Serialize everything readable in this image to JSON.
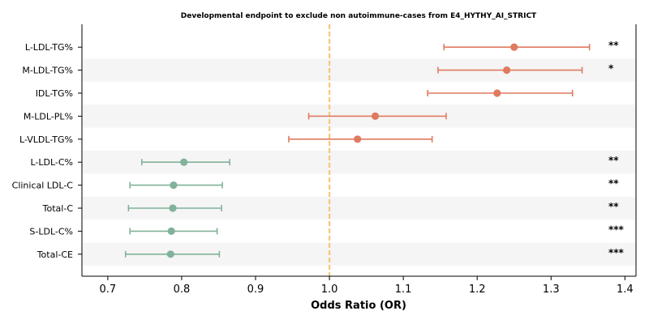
{
  "chart_data": {
    "type": "forest",
    "title": "Developmental endpoint to exclude non autoimmune-cases from E4_HYTHY_AI_STRICT",
    "xlabel": "Odds Ratio (OR)",
    "xlim": [
      0.665,
      1.415
    ],
    "xticks": [
      0.7,
      0.8,
      0.9,
      1.0,
      1.1,
      1.2,
      1.3,
      1.4
    ],
    "xtick_labels": [
      "0.7",
      "0.8",
      "0.9",
      "1.0",
      "1.1",
      "1.2",
      "1.3",
      "1.4"
    ],
    "reference_line": 1.0,
    "reference_color": "#f2c879",
    "colors": {
      "positive": "#e07a5f",
      "negative": "#81b29a",
      "band": "#f5f5f5"
    },
    "rows": [
      {
        "label": "L-LDL-TG%",
        "or": 1.25,
        "lo": 1.155,
        "hi": 1.352,
        "sig": "**",
        "dir": "positive"
      },
      {
        "label": "M-LDL-TG%",
        "or": 1.24,
        "lo": 1.147,
        "hi": 1.342,
        "sig": "*",
        "dir": "positive"
      },
      {
        "label": "IDL-TG%",
        "or": 1.227,
        "lo": 1.133,
        "hi": 1.329,
        "sig": "",
        "dir": "positive"
      },
      {
        "label": "M-LDL-PL%",
        "or": 1.062,
        "lo": 0.972,
        "hi": 1.158,
        "sig": "",
        "dir": "positive"
      },
      {
        "label": "L-VLDL-TG%",
        "or": 1.038,
        "lo": 0.945,
        "hi": 1.139,
        "sig": "",
        "dir": "positive"
      },
      {
        "label": "L-LDL-C%",
        "or": 0.803,
        "lo": 0.746,
        "hi": 0.865,
        "sig": "**",
        "dir": "negative"
      },
      {
        "label": "Clinical LDL-C",
        "or": 0.789,
        "lo": 0.73,
        "hi": 0.855,
        "sig": "**",
        "dir": "negative"
      },
      {
        "label": "Total-C",
        "or": 0.788,
        "lo": 0.728,
        "hi": 0.854,
        "sig": "**",
        "dir": "negative"
      },
      {
        "label": "S-LDL-C%",
        "or": 0.786,
        "lo": 0.73,
        "hi": 0.848,
        "sig": "***",
        "dir": "negative"
      },
      {
        "label": "Total-CE",
        "or": 0.785,
        "lo": 0.724,
        "hi": 0.851,
        "sig": "***",
        "dir": "negative"
      }
    ]
  }
}
